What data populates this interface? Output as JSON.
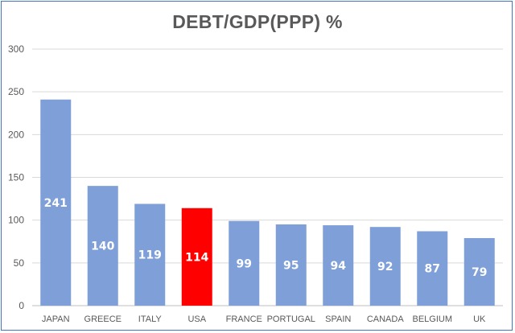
{
  "chart_data": {
    "type": "bar",
    "title": "DEBT/GDP(PPP) %",
    "xlabel": "",
    "ylabel": "",
    "categories": [
      "JAPAN",
      "GREECE",
      "ITALY",
      "USA",
      "FRANCE",
      "PORTUGAL",
      "SPAIN",
      "CANADA",
      "BELGIUM",
      "UK"
    ],
    "values": [
      241,
      140,
      119,
      114,
      99,
      95,
      94,
      92,
      87,
      79
    ],
    "ylim": [
      0,
      300
    ],
    "yticks": [
      0,
      50,
      100,
      150,
      200,
      250,
      300
    ],
    "grid": true,
    "legend": "none",
    "colors": {
      "default_bar": "#7f9fd8",
      "highlight_bar": "#ff0000",
      "highlight_category": "USA",
      "gridline": "#d9d9d9",
      "text": "#595959",
      "data_label": "#ffffff",
      "border": "#4472c4"
    }
  }
}
